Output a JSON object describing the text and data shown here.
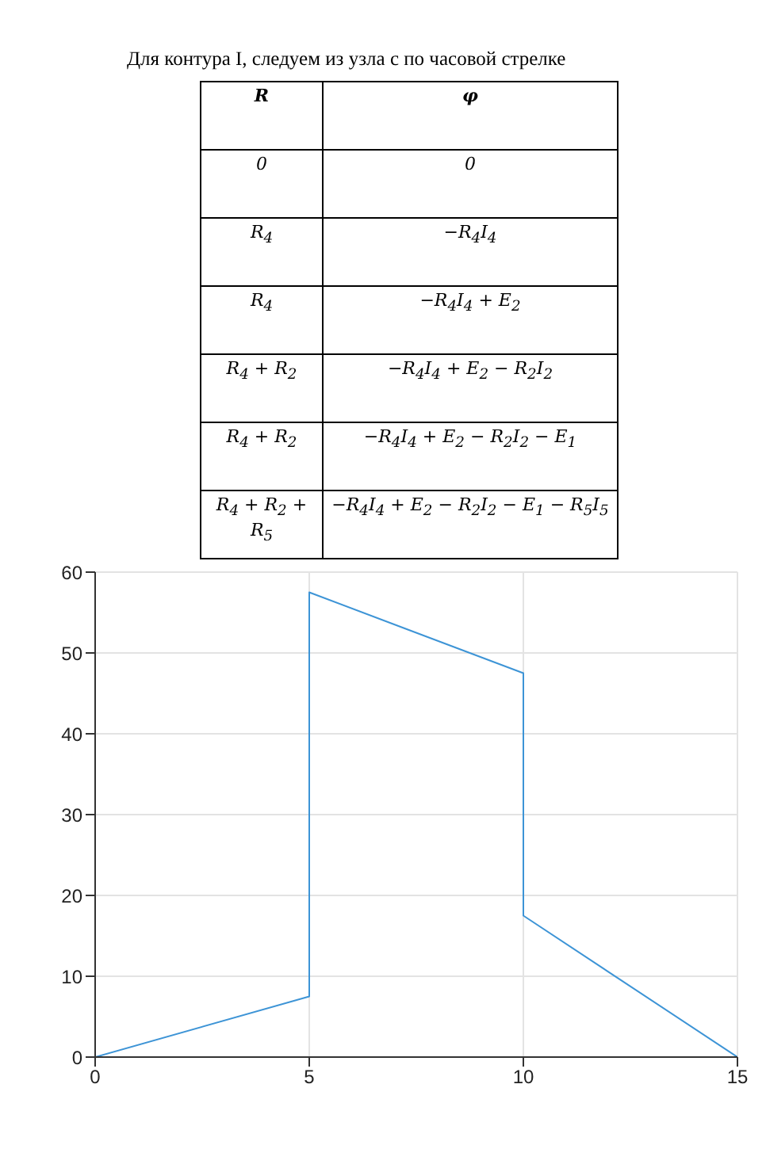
{
  "chart_data": {
    "type": "line",
    "title": "Для контура I, следуем из узла с по часовой стрелке",
    "annotations": [
      "R",
      "φ",
      "0",
      "0",
      "R$_{4}$",
      "−R$_{4}$I$_{4}$",
      "R$_{4}$",
      "−R$_{4}$I$_{4}$ + E$_{2}$",
      "R$_{4}$ + R$_{2}$",
      "−R$_{4}$I$_{4}$ + E$_{2}$ − R$_{2}$I$_{2}$",
      "R$_{4}$ + R$_{2}$",
      "−R$_{4}$I$_{4}$ + E$_{2}$ − R$_{2}$I$_{2}$ − E$_{1}$",
      "R$_{4}$ + R$_{2}$ + R$_{5}$",
      "−R$_{4}$I$_{4}$ + E$_{2}$ − R$_{2}$I$_{2}$ − E$_{1}$ − R$_{5}$I$_{5}$"
    ],
    "x": [
      0,
      5,
      5,
      10,
      10,
      15
    ],
    "values": [
      0,
      7.5,
      57.5,
      47.5,
      17.5,
      0
    ],
    "color": "#3d94d6",
    "xlim": [
      0,
      15
    ],
    "xticks": [
      0,
      5,
      10,
      15
    ],
    "ylim": [
      0,
      60
    ],
    "yticks": [
      0,
      10,
      20,
      30,
      40,
      50,
      60
    ],
    "grid": true
  }
}
